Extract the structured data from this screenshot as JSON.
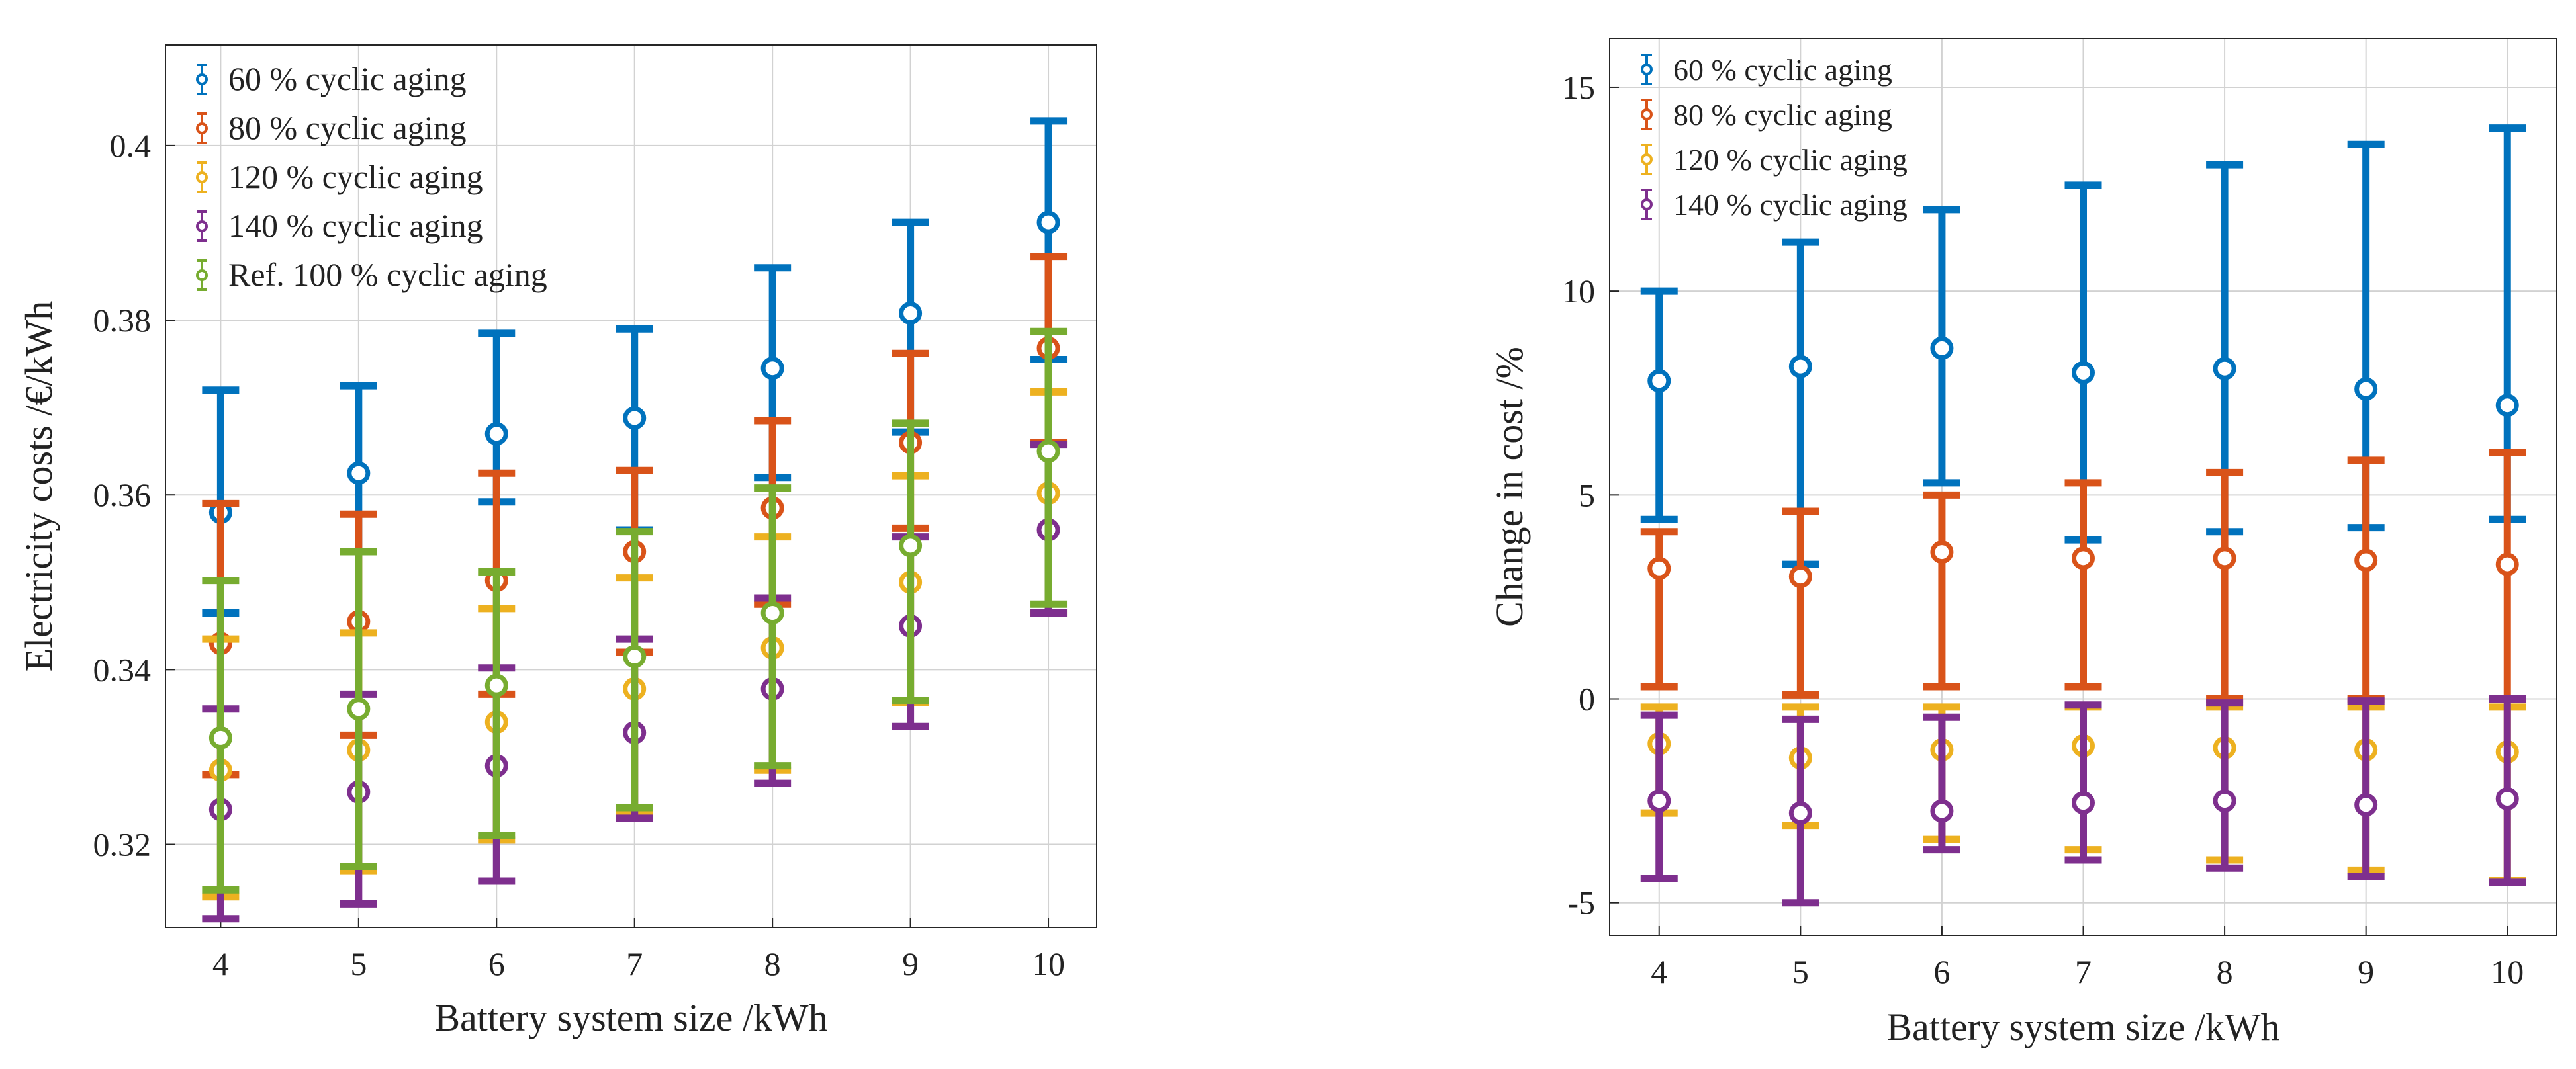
{
  "chart_data": [
    {
      "type": "scatter",
      "subtype": "errorbar",
      "title": "",
      "xlabel": "Battery system size /kWh",
      "ylabel": "Electricity costs /€/kWh",
      "x": [
        4,
        5,
        6,
        7,
        8,
        9,
        10
      ],
      "xticks": [
        4,
        5,
        6,
        7,
        8,
        9,
        10
      ],
      "xtick_labels": [
        "4",
        "5",
        "6",
        "7",
        "8",
        "9",
        "10"
      ],
      "xlim": [
        3.6,
        10.35
      ],
      "yticks": [
        0.32,
        0.34,
        0.36,
        0.38,
        0.4
      ],
      "ytick_labels": [
        "0.32",
        "0.34",
        "0.36",
        "0.38",
        "0.4"
      ],
      "ylim": [
        0.3105,
        0.4115
      ],
      "grid": true,
      "legend_position": "top-left",
      "series": [
        {
          "name": "60 % cyclic aging",
          "color": "#0072BD",
          "mean": [
            0.358,
            0.3625,
            0.367,
            0.3688,
            0.3745,
            0.3808,
            0.3912
          ],
          "low": [
            0.3465,
            0.3535,
            0.3592,
            0.356,
            0.362,
            0.3672,
            0.3755
          ],
          "high": [
            0.372,
            0.3725,
            0.3785,
            0.379,
            0.386,
            0.3912,
            0.4028
          ]
        },
        {
          "name": "80 % cyclic aging",
          "color": "#D95319",
          "mean": [
            0.343,
            0.3455,
            0.3502,
            0.3535,
            0.3585,
            0.366,
            0.3768
          ],
          "low": [
            0.328,
            0.3325,
            0.3372,
            0.342,
            0.3475,
            0.3562,
            0.366
          ],
          "high": [
            0.359,
            0.3578,
            0.3625,
            0.3628,
            0.3685,
            0.3762,
            0.3873
          ]
        },
        {
          "name": "120 % cyclic aging",
          "color": "#EDB120",
          "mean": [
            0.3285,
            0.3308,
            0.334,
            0.3378,
            0.3425,
            0.35,
            0.3602
          ],
          "low": [
            0.314,
            0.317,
            0.3205,
            0.3235,
            0.3285,
            0.3362,
            0.3465
          ],
          "high": [
            0.3435,
            0.3442,
            0.347,
            0.3505,
            0.3552,
            0.3622,
            0.3718
          ]
        },
        {
          "name": "140 % cyclic aging",
          "color": "#7E2F8E",
          "mean": [
            0.324,
            0.326,
            0.329,
            0.3328,
            0.3378,
            0.345,
            0.356
          ],
          "low": [
            0.3115,
            0.3132,
            0.3158,
            0.323,
            0.327,
            0.3335,
            0.3465
          ],
          "high": [
            0.3355,
            0.3372,
            0.3402,
            0.3435,
            0.3482,
            0.3552,
            0.3658
          ]
        },
        {
          "name": "Ref. 100 % cyclic aging",
          "color": "#77AC30",
          "mean": [
            0.3322,
            0.3355,
            0.3382,
            0.3415,
            0.3465,
            0.3542,
            0.365
          ],
          "low": [
            0.3148,
            0.3175,
            0.321,
            0.3242,
            0.329,
            0.3365,
            0.3475
          ],
          "high": [
            0.3502,
            0.3535,
            0.3512,
            0.3558,
            0.3608,
            0.3682,
            0.3787
          ]
        }
      ]
    },
    {
      "type": "scatter",
      "subtype": "errorbar",
      "title": "",
      "xlabel": "Battery system size /kWh",
      "ylabel": "Change in cost /%",
      "x": [
        4,
        5,
        6,
        7,
        8,
        9,
        10
      ],
      "xticks": [
        4,
        5,
        6,
        7,
        8,
        9,
        10
      ],
      "xtick_labels": [
        "4",
        "5",
        "6",
        "7",
        "8",
        "9",
        "10"
      ],
      "xlim": [
        3.65,
        10.35
      ],
      "yticks": [
        -5,
        0,
        5,
        10,
        15
      ],
      "ytick_labels": [
        "-5",
        "0",
        "5",
        "10",
        "15"
      ],
      "ylim": [
        -5.8,
        16.2
      ],
      "grid": true,
      "legend_position": "top-left",
      "series": [
        {
          "name": "60 % cyclic aging",
          "color": "#0072BD",
          "mean": [
            7.8,
            8.15,
            8.6,
            8.0,
            8.1,
            7.6,
            7.2
          ],
          "low": [
            4.4,
            3.3,
            5.3,
            3.9,
            4.1,
            4.2,
            4.4
          ],
          "high": [
            10.0,
            11.2,
            12.0,
            12.6,
            13.1,
            13.6,
            14.0
          ]
        },
        {
          "name": "80 % cyclic aging",
          "color": "#D95319",
          "mean": [
            3.2,
            3.0,
            3.6,
            3.45,
            3.45,
            3.4,
            3.3
          ],
          "low": [
            0.3,
            0.1,
            0.3,
            0.3,
            0.0,
            0.0,
            0.0
          ],
          "high": [
            4.1,
            4.6,
            5.0,
            5.3,
            5.55,
            5.85,
            6.05
          ]
        },
        {
          "name": "120 % cyclic aging",
          "color": "#EDB120",
          "mean": [
            -1.1,
            -1.45,
            -1.25,
            -1.15,
            -1.2,
            -1.25,
            -1.3
          ],
          "low": [
            -2.8,
            -3.1,
            -3.45,
            -3.7,
            -3.95,
            -4.2,
            -4.45
          ],
          "high": [
            -0.2,
            -0.2,
            -0.2,
            -0.2,
            -0.2,
            -0.2,
            -0.2
          ]
        },
        {
          "name": "140 % cyclic aging",
          "color": "#7E2F8E",
          "mean": [
            -2.5,
            -2.8,
            -2.75,
            -2.55,
            -2.5,
            -2.6,
            -2.45
          ],
          "low": [
            -4.4,
            -5.0,
            -3.7,
            -3.95,
            -4.15,
            -4.35,
            -4.5
          ],
          "high": [
            -0.4,
            -0.5,
            -0.45,
            -0.15,
            -0.1,
            -0.05,
            0.0
          ]
        }
      ]
    }
  ]
}
